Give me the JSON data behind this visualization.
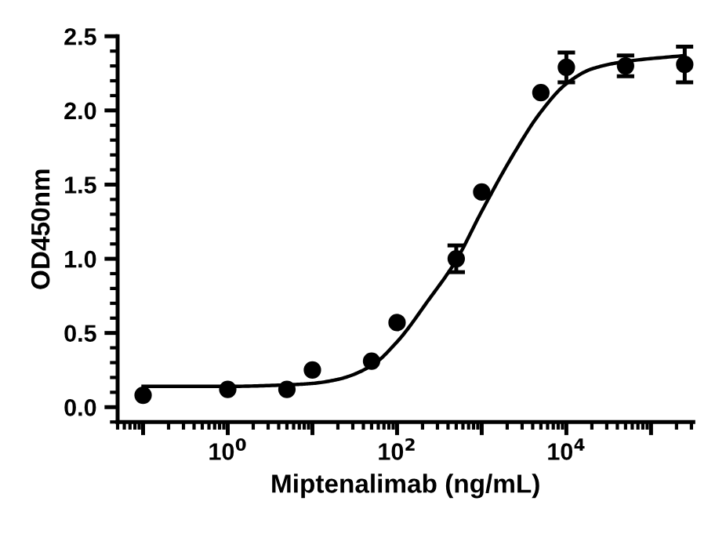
{
  "chart_data": {
    "type": "scatter",
    "xlabel": "Miptenalimab (ng/mL)",
    "ylabel": "OD450nm",
    "log": "x",
    "xlim": [
      0.05,
      316000
    ],
    "xticks": [
      {
        "value": 0.1,
        "label": null
      },
      {
        "value": 1,
        "label": "10$^{0}$"
      },
      {
        "value": 10,
        "label": null
      },
      {
        "value": 100,
        "label": "10$^{2}$"
      },
      {
        "value": 1000,
        "label": null
      },
      {
        "value": 10000,
        "label": "10$^{4}$"
      },
      {
        "value": 100000,
        "label": null
      }
    ],
    "ylim": [
      -0.1,
      2.5
    ],
    "yticks": [
      {
        "value": 0,
        "label": "0.0"
      },
      0.5,
      {
        "value": 1,
        "label": "1.0"
      },
      1.5,
      {
        "value": 2,
        "label": "2.0"
      },
      2.5
    ],
    "grid": false,
    "series": [
      {
        "color": "#000000",
        "marker": "circle",
        "x": [
          0.1,
          1,
          5,
          10,
          50,
          100,
          500,
          1000,
          5000,
          10000,
          50000,
          250000
        ],
        "values": [
          0.08,
          0.12,
          0.12,
          0.25,
          0.31,
          0.57,
          1.0,
          1.45,
          2.12,
          2.29,
          2.3,
          2.31
        ],
        "errors": [
          null,
          null,
          null,
          null,
          null,
          null,
          0.09,
          null,
          null,
          0.1,
          0.07,
          0.12
        ]
      },
      {
        "type": "line",
        "color": "#000000",
        "line_style": "solid",
        "x": [
          0.1,
          1,
          5,
          10,
          21,
          50,
          100,
          234,
          500,
          1000,
          2290,
          5000,
          10000,
          20000,
          50000,
          250000
        ],
        "values": [
          0.14,
          0.14,
          0.15,
          0.16,
          0.19,
          0.28,
          0.44,
          0.72,
          0.99,
          1.32,
          1.69,
          1.99,
          2.18,
          2.28,
          2.33,
          2.37
        ]
      }
    ]
  }
}
